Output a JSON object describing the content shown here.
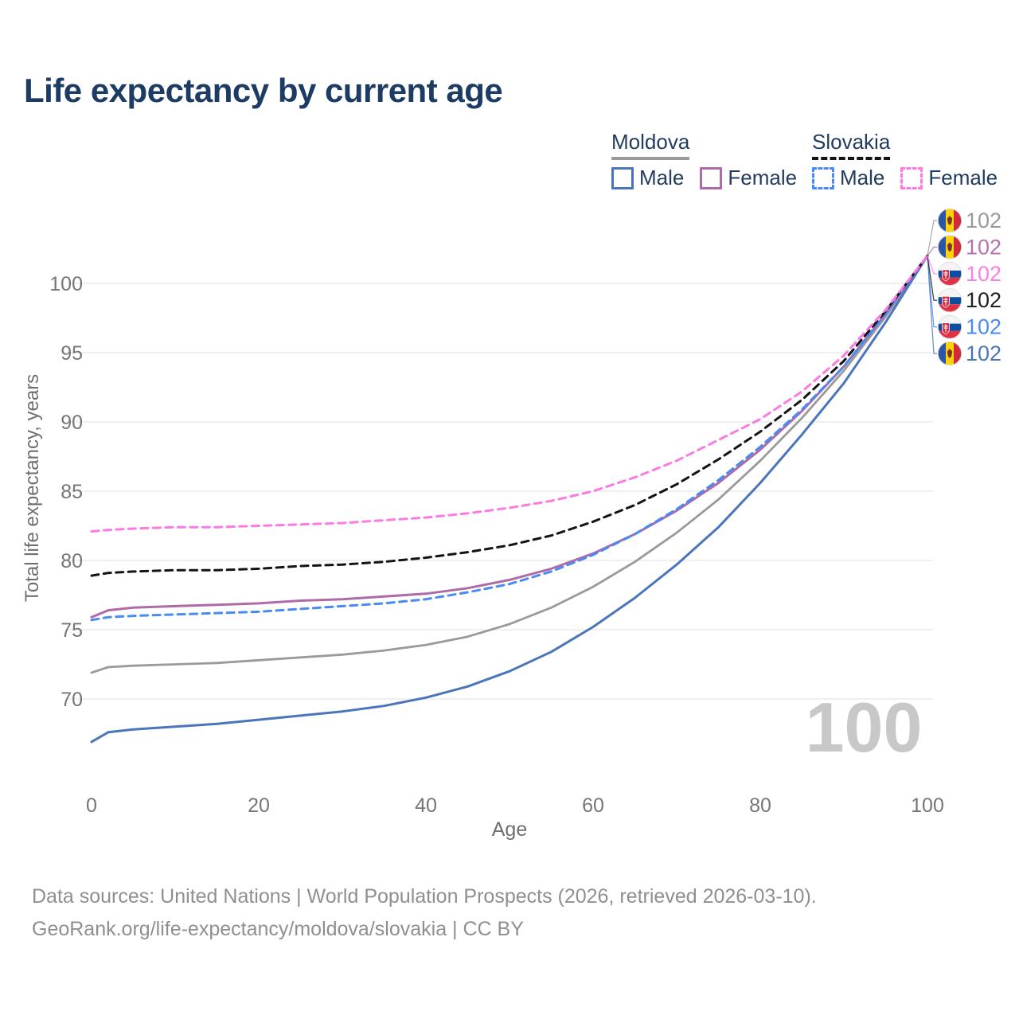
{
  "title": "Life expectancy by current age",
  "legend": {
    "groups": [
      {
        "country": "Moldova",
        "underline": {
          "style": "solid",
          "color": "#9a9a9a"
        },
        "items": [
          {
            "label": "Male",
            "color": "#4a75ba",
            "dashed": false
          },
          {
            "label": "Female",
            "color": "#ae6ba7",
            "dashed": false
          }
        ]
      },
      {
        "country": "Slovakia",
        "underline": {
          "style": "dashed",
          "color": "#141414"
        },
        "items": [
          {
            "label": "Male",
            "color": "#4a8af4",
            "dashed": true
          },
          {
            "label": "Female",
            "color": "#fc7ae2",
            "dashed": true
          }
        ]
      }
    ]
  },
  "chart_data": {
    "type": "line",
    "title": "Life expectancy by current age",
    "xlabel": "Age",
    "ylabel": "Total life expectancy, years",
    "x_ticks": [
      0,
      20,
      40,
      60,
      80,
      100
    ],
    "y_ticks": [
      70,
      75,
      80,
      85,
      90,
      95,
      100
    ],
    "xlim": [
      0,
      100
    ],
    "ylim": [
      66.5,
      103
    ],
    "grid": "horizontal",
    "legend_position": "top-right",
    "hover_age_label": "100",
    "x": [
      0,
      2,
      5,
      10,
      15,
      20,
      25,
      30,
      35,
      40,
      45,
      50,
      55,
      60,
      65,
      70,
      75,
      80,
      85,
      90,
      95,
      100
    ],
    "series": [
      {
        "id": "moldova-both",
        "name": "Moldova",
        "country": "Moldova",
        "sex": "Both",
        "color": "#9a9a9a",
        "dashed": false,
        "width": 2.8,
        "end_label": "102",
        "end_label_color": "#9a9a9a",
        "flag": "moldova",
        "label_row": 0,
        "values": [
          71.9,
          72.3,
          72.4,
          72.5,
          72.6,
          72.8,
          73.0,
          73.2,
          73.5,
          73.9,
          74.5,
          75.4,
          76.6,
          78.1,
          79.9,
          82.0,
          84.4,
          87.2,
          90.3,
          93.7,
          97.6,
          102
        ]
      },
      {
        "id": "moldova-male",
        "name": "Moldova Male",
        "country": "Moldova",
        "sex": "Male",
        "color": "#4a75ba",
        "dashed": false,
        "width": 3,
        "end_label": "102",
        "end_label_color": "#4a75ba",
        "flag": "moldova",
        "label_row": 5,
        "values": [
          66.9,
          67.6,
          67.8,
          68.0,
          68.2,
          68.5,
          68.8,
          69.1,
          69.5,
          70.1,
          70.9,
          72.0,
          73.4,
          75.2,
          77.3,
          79.7,
          82.4,
          85.6,
          89.1,
          92.8,
          97.2,
          102
        ]
      },
      {
        "id": "moldova-female",
        "name": "Moldova Female",
        "country": "Moldova",
        "sex": "Female",
        "color": "#ae6ba7",
        "dashed": false,
        "width": 3,
        "end_label": "102",
        "end_label_color": "#b573ae",
        "flag": "moldova",
        "label_row": 1,
        "values": [
          75.9,
          76.4,
          76.6,
          76.7,
          76.8,
          76.9,
          77.1,
          77.2,
          77.4,
          77.6,
          78.0,
          78.6,
          79.4,
          80.5,
          81.9,
          83.6,
          85.6,
          88.0,
          90.8,
          94.0,
          97.8,
          102
        ]
      },
      {
        "id": "slovakia-male",
        "name": "Slovakia Male",
        "country": "Slovakia",
        "sex": "Male",
        "color": "#4a8af4",
        "dashed": true,
        "width": 3,
        "end_label": "102",
        "end_label_color": "#4a8af4",
        "flag": "slovakia",
        "label_row": 4,
        "values": [
          75.7,
          75.9,
          76.0,
          76.1,
          76.2,
          76.3,
          76.5,
          76.7,
          76.9,
          77.2,
          77.7,
          78.3,
          79.2,
          80.4,
          81.9,
          83.7,
          85.8,
          88.2,
          90.9,
          94.0,
          97.8,
          102
        ]
      },
      {
        "id": "slovakia-both",
        "name": "Slovakia",
        "country": "Slovakia",
        "sex": "Both",
        "color": "#141414",
        "dashed": true,
        "width": 3,
        "end_label": "102",
        "end_label_color": "#222222",
        "flag": "slovakia",
        "label_row": 3,
        "values": [
          78.9,
          79.1,
          79.2,
          79.3,
          79.3,
          79.4,
          79.6,
          79.7,
          79.9,
          80.2,
          80.6,
          81.1,
          81.8,
          82.8,
          84.0,
          85.5,
          87.3,
          89.3,
          91.6,
          94.4,
          98.0,
          102
        ]
      },
      {
        "id": "slovakia-female",
        "name": "Slovakia Female",
        "country": "Slovakia",
        "sex": "Female",
        "color": "#fc7ae2",
        "dashed": true,
        "width": 3,
        "end_label": "102",
        "end_label_color": "#ff7ee3",
        "flag": "slovakia",
        "label_row": 2,
        "values": [
          82.1,
          82.2,
          82.3,
          82.4,
          82.4,
          82.5,
          82.6,
          82.7,
          82.9,
          83.1,
          83.4,
          83.8,
          84.3,
          85.0,
          86.0,
          87.2,
          88.7,
          90.2,
          92.2,
          94.8,
          98.1,
          102
        ]
      }
    ]
  },
  "footer": {
    "line1": "Data sources: United Nations | World Population Prospects (2026, retrieved 2026-03-10).",
    "line2": "GeoRank.org/life-expectancy/moldova/slovakia | CC BY"
  }
}
